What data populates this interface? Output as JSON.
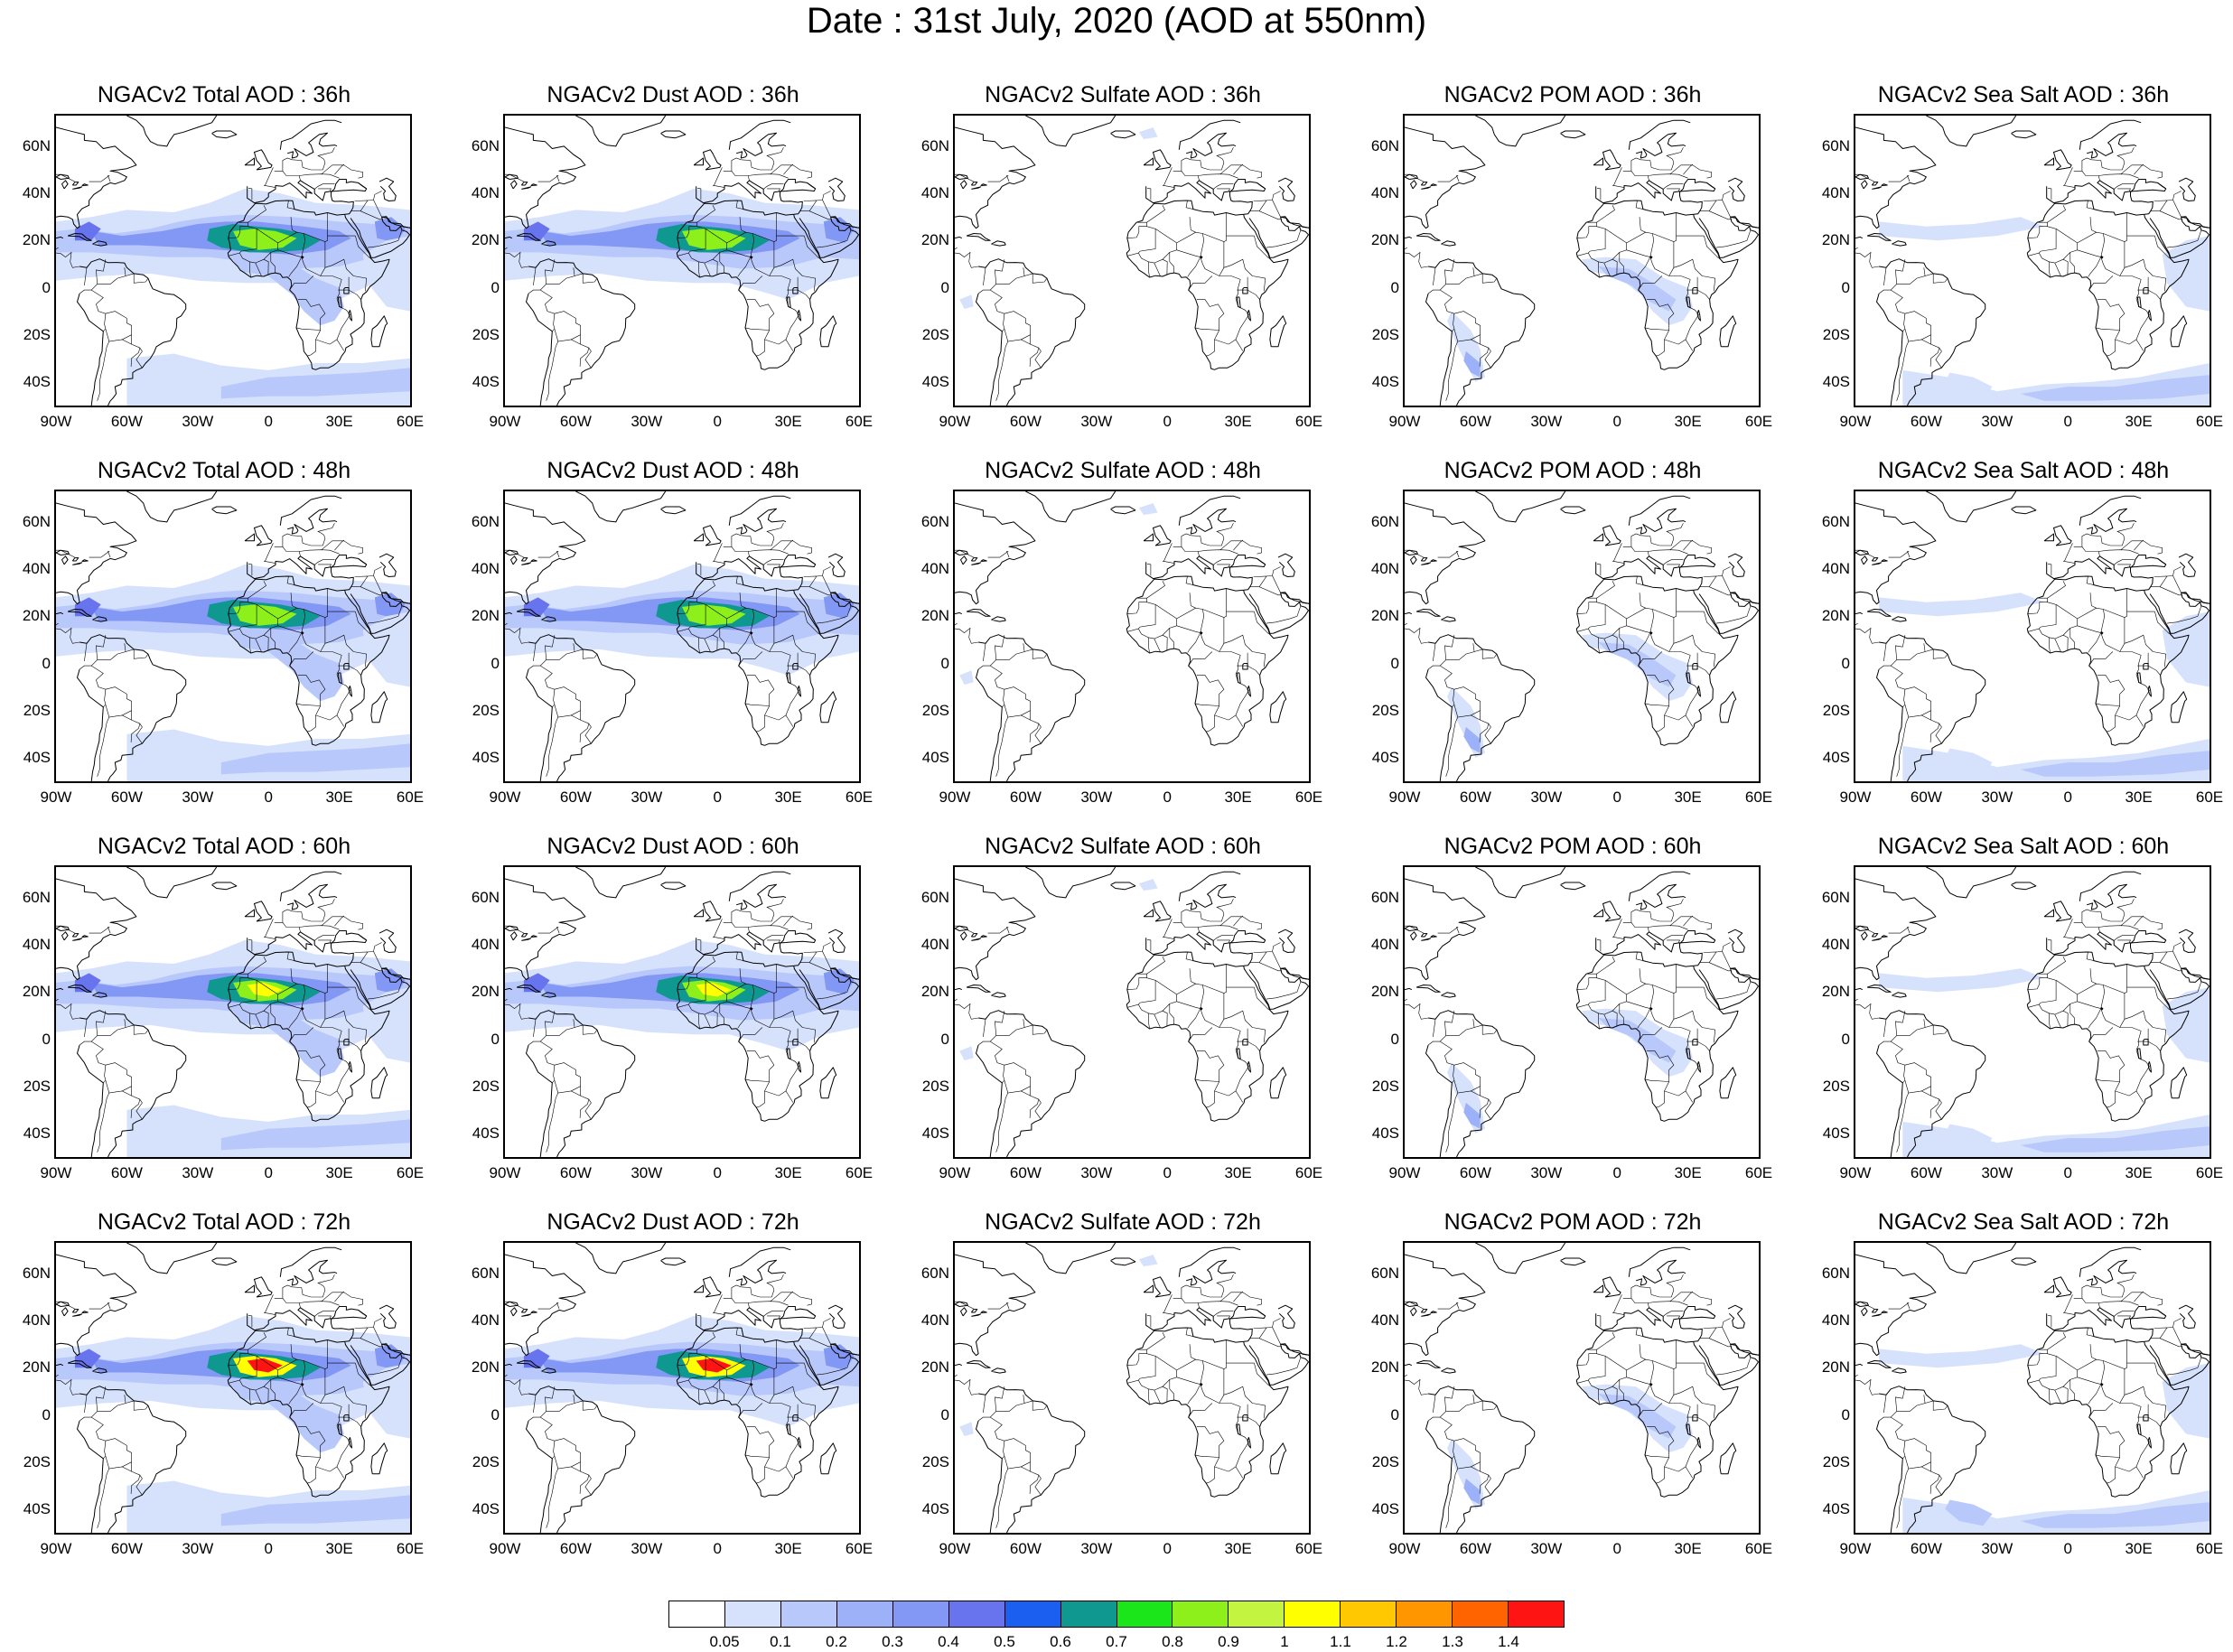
{
  "title": "Date : 31st July, 2020 (AOD at 550nm)",
  "species": [
    {
      "key": "total",
      "titles": [
        "NGACv2 Total AOD : 36h",
        "NGACv2 Total AOD : 48h",
        "NGACv2 Total AOD : 60h",
        "NGACv2 Total AOD : 72h"
      ]
    },
    {
      "key": "dust",
      "titles": [
        "NGACv2 Dust AOD : 36h",
        "NGACv2 Dust AOD : 48h",
        "NGACv2 Dust AOD : 60h",
        "NGACv2 Dust AOD : 72h"
      ]
    },
    {
      "key": "sulfate",
      "titles": [
        "NGACv2 Sulfate AOD : 36h",
        "NGACv2 Sulfate AOD : 48h",
        "NGACv2 Sulfate AOD : 60h",
        "NGACv2 Sulfate AOD : 72h"
      ]
    },
    {
      "key": "pom",
      "titles": [
        "NGACv2 POM AOD : 36h",
        "NGACv2 POM AOD : 48h",
        "NGACv2 POM AOD : 60h",
        "NGACv2 POM AOD : 72h"
      ]
    },
    {
      "key": "seasalt",
      "titles": [
        "NGACv2 Sea Salt AOD : 36h",
        "NGACv2 Sea Salt AOD : 48h",
        "NGACv2 Sea Salt AOD : 60h",
        "NGACv2 Sea Salt  AOD : 72h"
      ]
    }
  ],
  "lat_ticks": [
    "60N",
    "40N",
    "20N",
    "0",
    "20S",
    "40S"
  ],
  "lon_ticks": [
    "90W",
    "60W",
    "30W",
    "0",
    "30E",
    "60E"
  ],
  "legend": {
    "labels": [
      "0.05",
      "0.1",
      "0.2",
      "0.3",
      "0.4",
      "0.5",
      "0.6",
      "0.7",
      "0.8",
      "0.9",
      "1",
      "1.1",
      "1.2",
      "1.3",
      "1.4"
    ],
    "colors": [
      "#ffffff",
      "#d6e1fc",
      "#b9c8fa",
      "#9db1f8",
      "#8397f5",
      "#6873ee",
      "#1b5ff0",
      "#0f9890",
      "#1ae61a",
      "#8ef01a",
      "#c3f540",
      "#ffff00",
      "#ffc800",
      "#ff9600",
      "#ff6400",
      "#ff1414"
    ]
  }
}
